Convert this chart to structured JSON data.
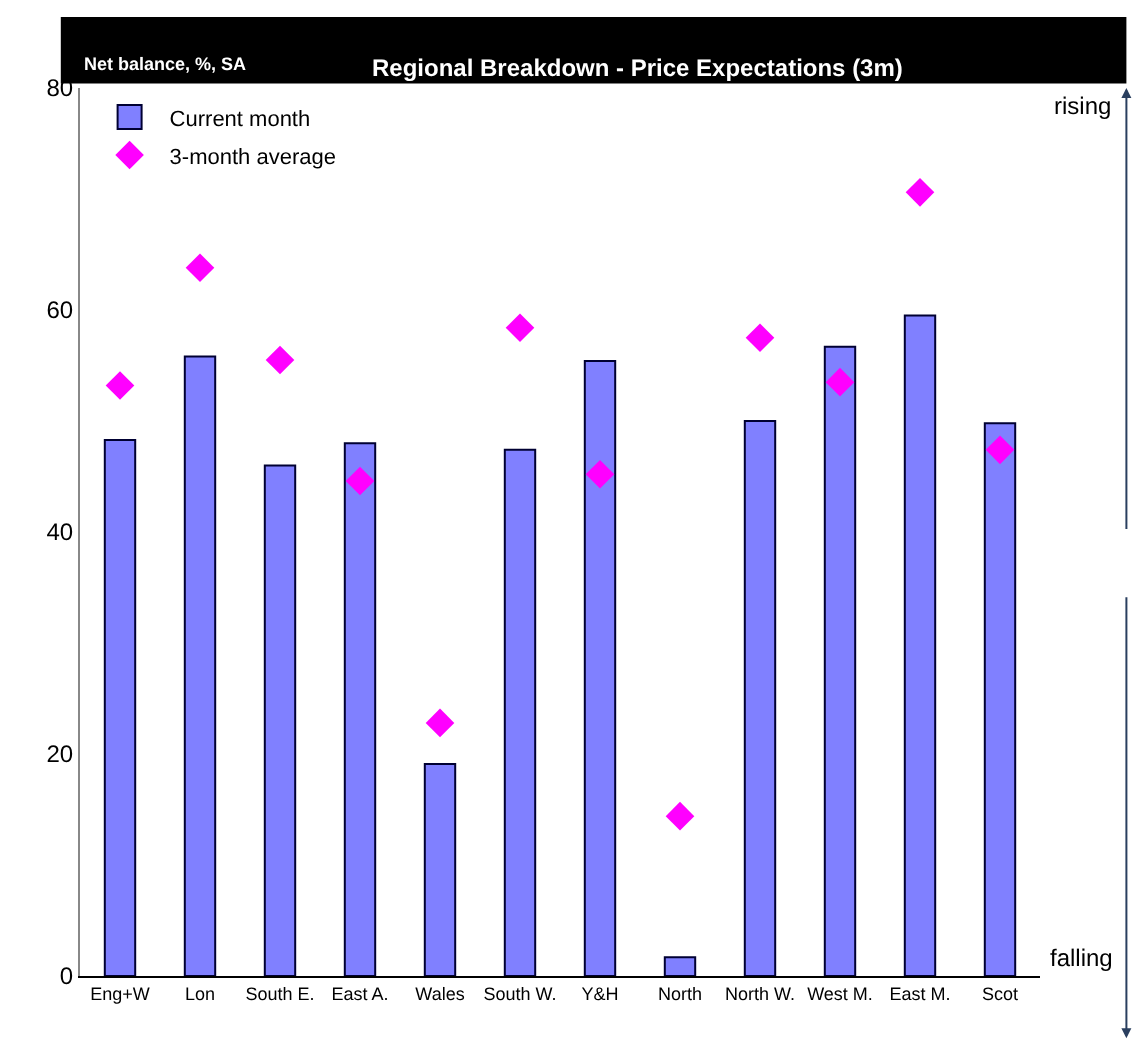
{
  "chart_data": {
    "type": "bar",
    "title": "Regional Breakdown - Price Expectations (3m)",
    "ylabel": "Net balance, %, SA",
    "categories": [
      "Eng+W",
      "Lon",
      "South E.",
      "East A.",
      "Wales",
      "South W.",
      "Y&H",
      "North",
      "North W.",
      "West M.",
      "East M.",
      "Scot"
    ],
    "series": [
      {
        "name": "Current month",
        "color": "#8080ff",
        "values": [
          48.3,
          55.8,
          46.0,
          48.0,
          19.1,
          47.4,
          55.4,
          1.7,
          50.0,
          56.7,
          59.5,
          49.8
        ]
      },
      {
        "name": "3-month average",
        "type": "scatter",
        "color": "#ff00ff",
        "marker": "diamond",
        "values": [
          53.2,
          63.8,
          55.5,
          44.6,
          22.8,
          58.4,
          45.2,
          14.4,
          57.5,
          53.5,
          70.6,
          47.4
        ]
      }
    ],
    "ylim": [
      0,
      80
    ],
    "yticks": [
      0,
      20,
      40,
      60,
      80
    ],
    "legend": "top left",
    "annotations": [
      "rising",
      "falling"
    ]
  }
}
